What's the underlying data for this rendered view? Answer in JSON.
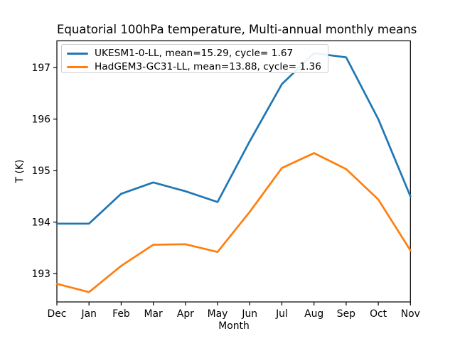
{
  "chart_data": {
    "type": "line",
    "title": "Equatorial 100hPa temperature, Multi-annual monthly means",
    "xlabel": "Month",
    "ylabel": "T (K)",
    "categories": [
      "Dec",
      "Jan",
      "Feb",
      "Mar",
      "Apr",
      "May",
      "Jun",
      "Jul",
      "Aug",
      "Sep",
      "Oct",
      "Nov"
    ],
    "y_ticks": [
      193,
      194,
      195,
      196,
      197
    ],
    "ylim": [
      192.45,
      197.52
    ],
    "grid": false,
    "legend_position": "upper left",
    "axis_color": "#000000",
    "background_color": "#ffffff",
    "series": [
      {
        "name": "UKESM1-0-LL, mean=15.29, cycle= 1.67",
        "color": "#1f77b4",
        "values": [
          193.97,
          193.97,
          194.55,
          194.77,
          194.6,
          194.39,
          195.57,
          196.68,
          197.28,
          197.2,
          196.0,
          194.5
        ]
      },
      {
        "name": "HadGEM3-GC31-LL, mean=13.88, cycle= 1.36",
        "color": "#ff7f0e",
        "values": [
          192.8,
          192.64,
          193.15,
          193.56,
          193.57,
          193.42,
          194.2,
          195.05,
          195.34,
          195.03,
          194.44,
          193.45
        ]
      }
    ]
  }
}
